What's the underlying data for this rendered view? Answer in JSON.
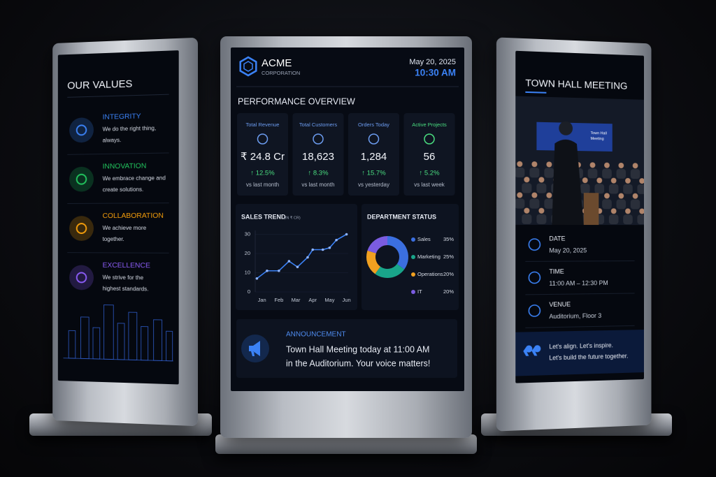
{
  "left": {
    "title": "OUR VALUES",
    "values": [
      {
        "title": "INTEGRITY",
        "color": "#3b82f6",
        "lines": [
          "We do the right thing,",
          "always."
        ]
      },
      {
        "title": "INNOVATION",
        "color": "#22c55e",
        "lines": [
          "We embrace change and",
          "create solutions."
        ]
      },
      {
        "title": "COLLABORATION",
        "color": "#f59e0b",
        "lines": [
          "We achieve more",
          "together."
        ]
      },
      {
        "title": "EXCELLENCE",
        "color": "#8b5cf6",
        "lines": [
          "We strive for the",
          "highest standards."
        ]
      }
    ]
  },
  "center": {
    "brand": {
      "name": "ACME",
      "subtitle": "CORPORATION"
    },
    "date": "May 20, 2025",
    "time": "10:30 AM",
    "section_title": "PERFORMANCE OVERVIEW",
    "kpis": [
      {
        "label": "Total Revenue",
        "value": "₹ 24.8 Cr",
        "change": "↑ 12.5%",
        "comparison": "vs last month",
        "color": "#6c9cf0"
      },
      {
        "label": "Total Customers",
        "value": "18,623",
        "change": "↑ 8.3%",
        "comparison": "vs last month",
        "color": "#6c9cf0"
      },
      {
        "label": "Orders Today",
        "value": "1,284",
        "change": "↑ 15.7%",
        "comparison": "vs yesterday",
        "color": "#6c9cf0"
      },
      {
        "label": "Active Projects",
        "value": "56",
        "change": "↑ 5.2%",
        "comparison": "vs last week",
        "color": "#4ade80"
      }
    ],
    "sales_trend": {
      "type": "line",
      "title": "SALES TREND",
      "unit_label": "(IN ₹ CR)",
      "x": [
        0.7,
        1.3,
        2,
        2.6,
        3.1,
        3.7,
        4,
        4.6,
        5,
        5.4,
        6
      ],
      "values": [
        7,
        11,
        11,
        16,
        13,
        18,
        22,
        22,
        23,
        27,
        30
      ],
      "color": "#3b82f6",
      "xlim": [
        0.6,
        6.1
      ],
      "xticks": [
        {
          "value": 1,
          "label": "Jan"
        },
        {
          "value": 2,
          "label": "Feb"
        },
        {
          "value": 3,
          "label": "Mar"
        },
        {
          "value": 4,
          "label": "Apr"
        },
        {
          "value": 5,
          "label": "May"
        },
        {
          "value": 6,
          "label": "Jun"
        }
      ],
      "ylim": [
        0,
        32
      ],
      "yticks": [
        0,
        10,
        20,
        30
      ],
      "grid": true
    },
    "department_status": {
      "type": "donut",
      "title": "DEPARTMENT STATUS",
      "categories": [
        "Sales",
        "Marketing",
        "Operations",
        "IT"
      ],
      "values": [
        35,
        25,
        20,
        20
      ],
      "value_labels": [
        "35%",
        "25%",
        "20%",
        "20%"
      ],
      "colors": [
        "#3b6fe0",
        "#19a58a",
        "#f0a020",
        "#7b5ce0"
      ]
    },
    "announcement": {
      "label": "ANNOUNCEMENT",
      "lines": [
        "Town Hall Meeting today at 11:00 AM",
        "in the Auditorium. Your voice matters!"
      ]
    }
  },
  "right": {
    "title": "TOWN HALL MEETING",
    "photo_caption": [
      "Town Hall",
      "Meeting"
    ],
    "details": [
      {
        "label": "DATE",
        "value": "May 20, 2025"
      },
      {
        "label": "TIME",
        "value": "11:00 AM – 12:30 PM"
      },
      {
        "label": "VENUE",
        "value": "Auditorium, Floor 3"
      }
    ],
    "quote": [
      "Let's align. Let's inspire.",
      "Let's build the future together."
    ]
  }
}
